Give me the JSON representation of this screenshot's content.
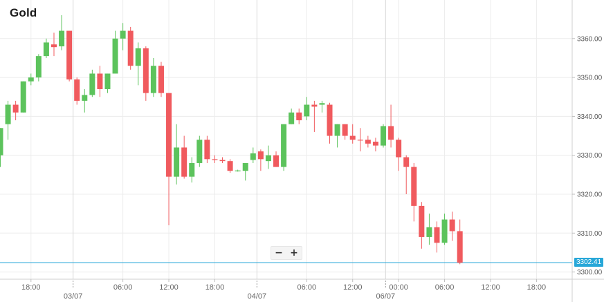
{
  "title": "Gold",
  "zoom": {
    "minus": "−",
    "plus": "+"
  },
  "current_price_label": "3302.41",
  "colors": {
    "up": "#5cc35c",
    "down": "#f05a5e",
    "grid": "#ececec",
    "price_line": "#27a7d8"
  },
  "chart_data": {
    "type": "candlestick",
    "title": "Gold",
    "ylim": [
      3298,
      3370
    ],
    "y_ticks": [
      3300,
      3310,
      3320,
      3330,
      3340,
      3350,
      3360
    ],
    "y_tick_labels": [
      "3300.00",
      "3310.00",
      "3320.00",
      "3330.00",
      "3340.00",
      "3350.00",
      "3360.00"
    ],
    "x_tick_labels": [
      {
        "label": "18:00",
        "t": 4
      },
      {
        "label": "06:00",
        "t": 16
      },
      {
        "label": "12:00",
        "t": 22
      },
      {
        "label": "18:00",
        "t": 28
      },
      {
        "label": "06:00",
        "t": 40
      },
      {
        "label": "12:00",
        "t": 46
      },
      {
        "label": "00:00",
        "t": 52
      },
      {
        "label": "06:00",
        "t": 58
      },
      {
        "label": "12:00",
        "t": 64
      },
      {
        "label": "18:00",
        "t": 70
      }
    ],
    "date_labels": [
      {
        "label": "03/07",
        "t": 9.5
      },
      {
        "label": "04/07",
        "t": 33.5
      },
      {
        "label": "06/07",
        "t": 50.3
      }
    ],
    "candles": [
      {
        "t": 0,
        "o": 3330,
        "h": 3337,
        "l": 3327,
        "c": 3337
      },
      {
        "t": 1,
        "o": 3338,
        "h": 3344,
        "l": 3334,
        "c": 3343
      },
      {
        "t": 2,
        "o": 3343,
        "h": 3344,
        "l": 3339,
        "c": 3341
      },
      {
        "t": 3,
        "o": 3341,
        "h": 3349,
        "l": 3341,
        "c": 3349
      },
      {
        "t": 4,
        "o": 3349,
        "h": 3351,
        "l": 3348,
        "c": 3350
      },
      {
        "t": 5,
        "o": 3350,
        "h": 3356,
        "l": 3349,
        "c": 3355.5
      },
      {
        "t": 6,
        "o": 3355.5,
        "h": 3360,
        "l": 3355,
        "c": 3359
      },
      {
        "t": 7,
        "o": 3358.5,
        "h": 3361.5,
        "l": 3355.5,
        "c": 3357.8
      },
      {
        "t": 8,
        "o": 3358,
        "h": 3366,
        "l": 3357,
        "c": 3362
      },
      {
        "t": 9,
        "o": 3362,
        "h": 3362,
        "l": 3349,
        "c": 3349.5
      },
      {
        "t": 10,
        "o": 3349.5,
        "h": 3350,
        "l": 3343,
        "c": 3344
      },
      {
        "t": 11,
        "o": 3344,
        "h": 3347,
        "l": 3341,
        "c": 3345.5
      },
      {
        "t": 12,
        "o": 3345.5,
        "h": 3352,
        "l": 3345,
        "c": 3351
      },
      {
        "t": 13,
        "o": 3351,
        "h": 3353,
        "l": 3345,
        "c": 3347
      },
      {
        "t": 14,
        "o": 3347,
        "h": 3351,
        "l": 3346,
        "c": 3351
      },
      {
        "t": 15,
        "o": 3351,
        "h": 3362,
        "l": 3351,
        "c": 3360
      },
      {
        "t": 16,
        "o": 3360,
        "h": 3364,
        "l": 3357,
        "c": 3362
      },
      {
        "t": 17,
        "o": 3362,
        "h": 3363,
        "l": 3352,
        "c": 3353
      },
      {
        "t": 18,
        "o": 3353,
        "h": 3359,
        "l": 3348,
        "c": 3357.5
      },
      {
        "t": 19,
        "o": 3357.5,
        "h": 3358,
        "l": 3344,
        "c": 3346
      },
      {
        "t": 20,
        "o": 3346,
        "h": 3355,
        "l": 3345,
        "c": 3353
      },
      {
        "t": 21,
        "o": 3353,
        "h": 3354,
        "l": 3345,
        "c": 3346
      },
      {
        "t": 22,
        "o": 3346,
        "h": 3346,
        "l": 3312,
        "c": 3324.5
      },
      {
        "t": 23,
        "o": 3324.5,
        "h": 3338,
        "l": 3322.5,
        "c": 3332
      },
      {
        "t": 24,
        "o": 3332,
        "h": 3335,
        "l": 3324,
        "c": 3324.5
      },
      {
        "t": 25,
        "o": 3324.5,
        "h": 3329.5,
        "l": 3323,
        "c": 3328
      },
      {
        "t": 26,
        "o": 3328,
        "h": 3335,
        "l": 3327,
        "c": 3334
      },
      {
        "t": 27,
        "o": 3334,
        "h": 3335,
        "l": 3328,
        "c": 3329
      },
      {
        "t": 28,
        "o": 3329,
        "h": 3330,
        "l": 3328,
        "c": 3328.8
      },
      {
        "t": 29,
        "o": 3328.8,
        "h": 3329.5,
        "l": 3328,
        "c": 3328.5
      },
      {
        "t": 30,
        "o": 3328.5,
        "h": 3329,
        "l": 3325.5,
        "c": 3326
      },
      {
        "t": 31,
        "o": 3326,
        "h": 3326.3,
        "l": 3325.8,
        "c": 3326.1
      },
      {
        "t": 32,
        "o": 3326,
        "h": 3328,
        "l": 3323.5,
        "c": 3328
      },
      {
        "t": 33,
        "o": 3328.8,
        "h": 3332,
        "l": 3328,
        "c": 3330.5
      },
      {
        "t": 34,
        "o": 3331,
        "h": 3331.5,
        "l": 3326,
        "c": 3329
      },
      {
        "t": 35,
        "o": 3328.5,
        "h": 3332.5,
        "l": 3326.5,
        "c": 3330
      },
      {
        "t": 36,
        "o": 3330,
        "h": 3331,
        "l": 3327,
        "c": 3327
      },
      {
        "t": 37,
        "o": 3327,
        "h": 3338,
        "l": 3326,
        "c": 3338
      },
      {
        "t": 38,
        "o": 3338,
        "h": 3342,
        "l": 3338,
        "c": 3341
      },
      {
        "t": 39,
        "o": 3341,
        "h": 3342,
        "l": 3338,
        "c": 3339
      },
      {
        "t": 40,
        "o": 3340,
        "h": 3345,
        "l": 3339,
        "c": 3343
      },
      {
        "t": 41,
        "o": 3343,
        "h": 3344,
        "l": 3336,
        "c": 3342.5
      },
      {
        "t": 42,
        "o": 3343,
        "h": 3344,
        "l": 3341,
        "c": 3343.4
      },
      {
        "t": 43,
        "o": 3343,
        "h": 3343.5,
        "l": 3333,
        "c": 3335
      },
      {
        "t": 44,
        "o": 3335,
        "h": 3338,
        "l": 3332,
        "c": 3338
      },
      {
        "t": 45,
        "o": 3338,
        "h": 3338,
        "l": 3334,
        "c": 3335
      },
      {
        "t": 46,
        "o": 3335,
        "h": 3338,
        "l": 3333,
        "c": 3334
      },
      {
        "t": 47,
        "o": 3334,
        "h": 3337,
        "l": 3331,
        "c": 3333.8
      },
      {
        "t": 48,
        "o": 3334,
        "h": 3335,
        "l": 3332,
        "c": 3333
      },
      {
        "t": 49,
        "o": 3333.5,
        "h": 3334.5,
        "l": 3331,
        "c": 3332.5
      },
      {
        "t": 50,
        "o": 3332.5,
        "h": 3338,
        "l": 3332,
        "c": 3337.5
      },
      {
        "t": 51,
        "o": 3337.5,
        "h": 3343,
        "l": 3332,
        "c": 3334
      },
      {
        "t": 52,
        "o": 3334,
        "h": 3334.5,
        "l": 3326,
        "c": 3329.5
      },
      {
        "t": 53,
        "o": 3329.5,
        "h": 3330,
        "l": 3320,
        "c": 3327
      },
      {
        "t": 54,
        "o": 3327,
        "h": 3328,
        "l": 3313,
        "c": 3317
      },
      {
        "t": 55,
        "o": 3317,
        "h": 3318,
        "l": 3306,
        "c": 3309
      },
      {
        "t": 56,
        "o": 3309,
        "h": 3315,
        "l": 3307,
        "c": 3311.5
      },
      {
        "t": 57,
        "o": 3311.5,
        "h": 3313,
        "l": 3305,
        "c": 3307.5
      },
      {
        "t": 58,
        "o": 3307.5,
        "h": 3315,
        "l": 3307,
        "c": 3313.5
      },
      {
        "t": 59,
        "o": 3313.5,
        "h": 3315.5,
        "l": 3308,
        "c": 3310.5
      },
      {
        "t": 60,
        "o": 3310.5,
        "h": 3313.5,
        "l": 3302,
        "c": 3302.4
      }
    ],
    "current_price": 3302.41
  }
}
